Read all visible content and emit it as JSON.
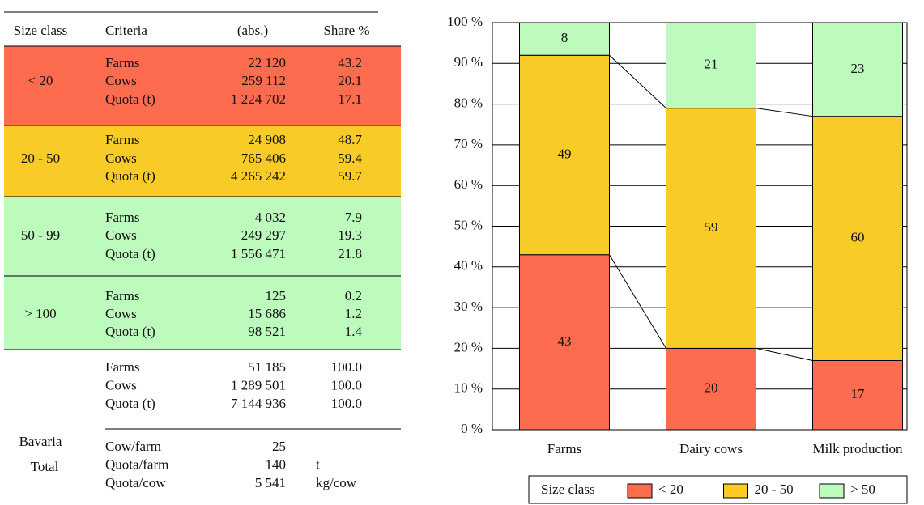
{
  "table": {
    "header": [
      "Size class",
      "Criteria",
      "(abs.)",
      "Share %"
    ],
    "groups": [
      {
        "label": "< 20",
        "color": "#fd6c4e",
        "rows": [
          [
            "Farms",
            "22 120",
            "43.2"
          ],
          [
            "Cows",
            "259 112",
            "20.1"
          ],
          [
            "Quota (t)",
            "1 224 702",
            "17.1"
          ]
        ]
      },
      {
        "label": "20 - 50",
        "color": "#f9cb26",
        "rows": [
          [
            "Farms",
            "24 908",
            "48.7"
          ],
          [
            "Cows",
            "765 406",
            "59.4"
          ],
          [
            "Quota (t)",
            "4 265 242",
            "59.7"
          ]
        ]
      },
      {
        "label": "50 - 99",
        "color": "#bdfbbd",
        "rows": [
          [
            "Farms",
            "4 032",
            "7.9"
          ],
          [
            "Cows",
            "249 297",
            "19.3"
          ],
          [
            "Quota (t)",
            "1 556 471",
            "21.8"
          ]
        ]
      },
      {
        "label": "> 100",
        "color": "#bdfbbd",
        "rows": [
          [
            "Farms",
            "125",
            "0.2"
          ],
          [
            "Cows",
            "15 686",
            "1.2"
          ],
          [
            "Quota (t)",
            "98 521",
            "1.4"
          ]
        ]
      }
    ],
    "total": {
      "label": [
        "Bavaria",
        "Total"
      ],
      "rows": [
        [
          "Farms",
          "51 185",
          "100.0"
        ],
        [
          "Cows",
          "1 289 501",
          "100.0"
        ],
        [
          "Quota (t)",
          "7 144 936",
          "100.0"
        ]
      ],
      "ratios": [
        [
          "Cow/farm",
          "25"
        ],
        [
          "Quota/farm",
          "140",
          "t"
        ],
        [
          "Quota/cow",
          "5 541",
          "kg/cow"
        ]
      ]
    }
  },
  "chart_data": {
    "type": "stacked_bar",
    "categories": [
      "Farms",
      "Dairy cows",
      "Milk production"
    ],
    "series": [
      {
        "name": "< 20",
        "color": "#fd6c4e",
        "values": [
          43,
          20,
          17
        ]
      },
      {
        "name": "20 - 50",
        "color": "#f9cb26",
        "values": [
          49,
          59,
          60
        ]
      },
      {
        "name": "> 50",
        "color": "#bdfbbd",
        "values": [
          8,
          21,
          23
        ]
      }
    ],
    "ylim": [
      0,
      100
    ],
    "yticks": [
      {
        "value": 0,
        "label": "0 %"
      },
      {
        "value": 10,
        "label": "10 %"
      },
      {
        "value": 20,
        "label": "20 %"
      },
      {
        "value": 30,
        "label": "30 %"
      },
      {
        "value": 40,
        "label": "40 %"
      },
      {
        "value": 50,
        "label": "50 %"
      },
      {
        "value": 60,
        "label": "60 %"
      },
      {
        "value": 70,
        "label": "70 %"
      },
      {
        "value": 80,
        "label": "80 %"
      },
      {
        "value": 90,
        "label": "90 %"
      },
      {
        "value": 100,
        "label": "100 %"
      }
    ],
    "grid": true,
    "legend_title": "Size class"
  }
}
